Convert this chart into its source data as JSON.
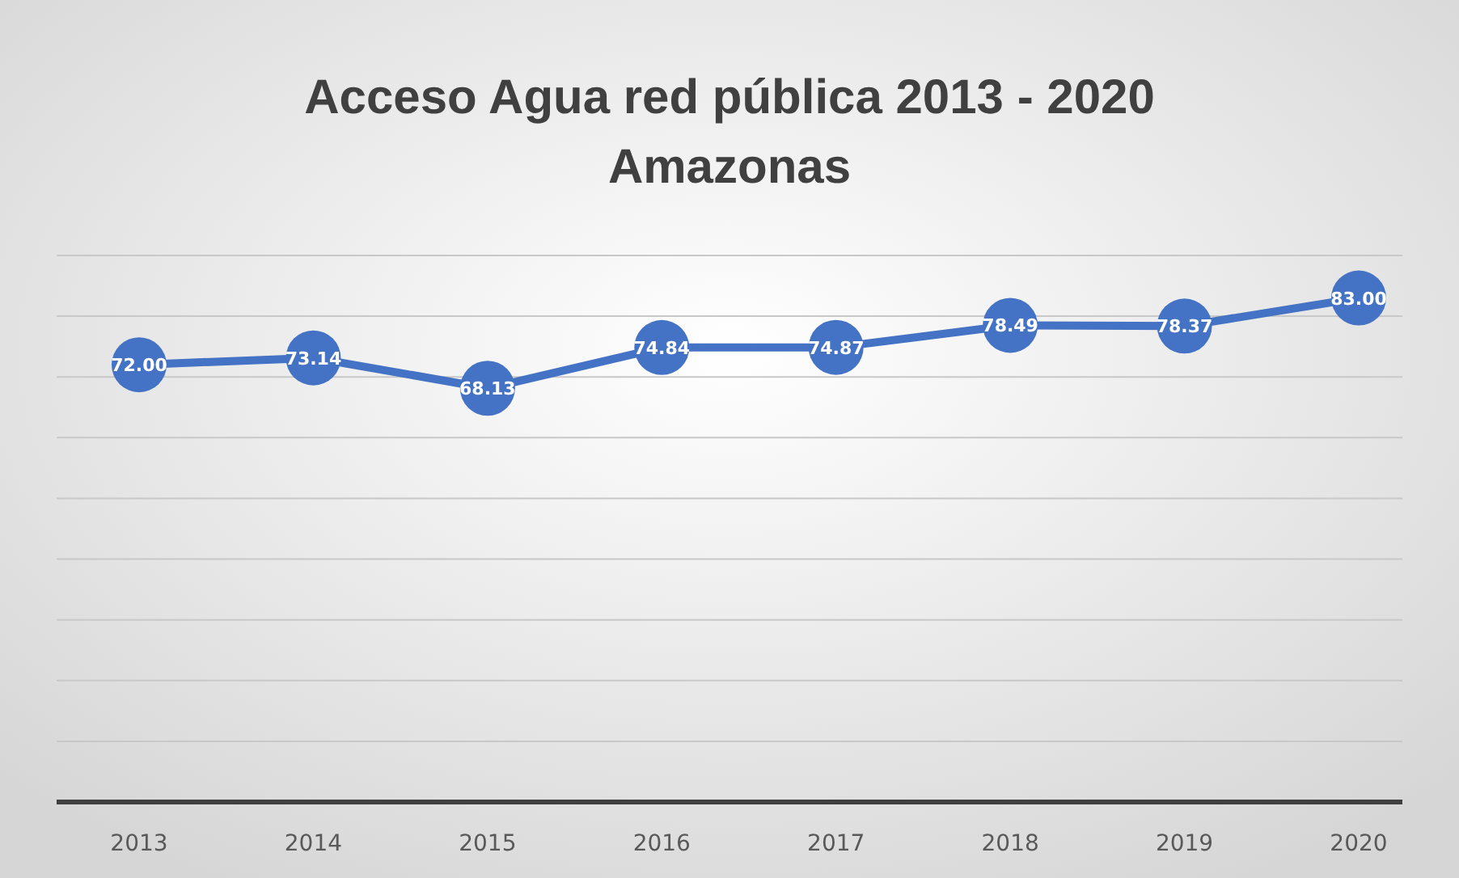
{
  "chart_data": {
    "type": "line",
    "title": "Acceso Agua red pública 2013 - 2020\nAmazonas",
    "categories": [
      "2013",
      "2014",
      "2015",
      "2016",
      "2017",
      "2018",
      "2019",
      "2020"
    ],
    "values": [
      72.0,
      73.14,
      68.13,
      74.84,
      74.87,
      78.49,
      78.37,
      83.0
    ],
    "color": "#4472c4",
    "ylim": [
      0,
      90
    ],
    "yticks": [
      {
        "value": 0,
        "label": null
      },
      {
        "value": 10,
        "label": null
      },
      {
        "value": 20,
        "label": null
      },
      {
        "value": 30,
        "label": null
      },
      {
        "value": 40,
        "label": null
      },
      {
        "value": 50,
        "label": null
      },
      {
        "value": 60,
        "label": null
      },
      {
        "value": 70,
        "label": null
      },
      {
        "value": 80,
        "label": null
      },
      {
        "value": 90,
        "label": null
      }
    ],
    "value_labels": [
      "72.00",
      "73.14",
      "68.13",
      "74.84",
      "74.87",
      "78.49",
      "78.37",
      "83.00"
    ],
    "grid": "y",
    "tick_labels": "x",
    "marker": "circle",
    "line_style": "solid"
  }
}
